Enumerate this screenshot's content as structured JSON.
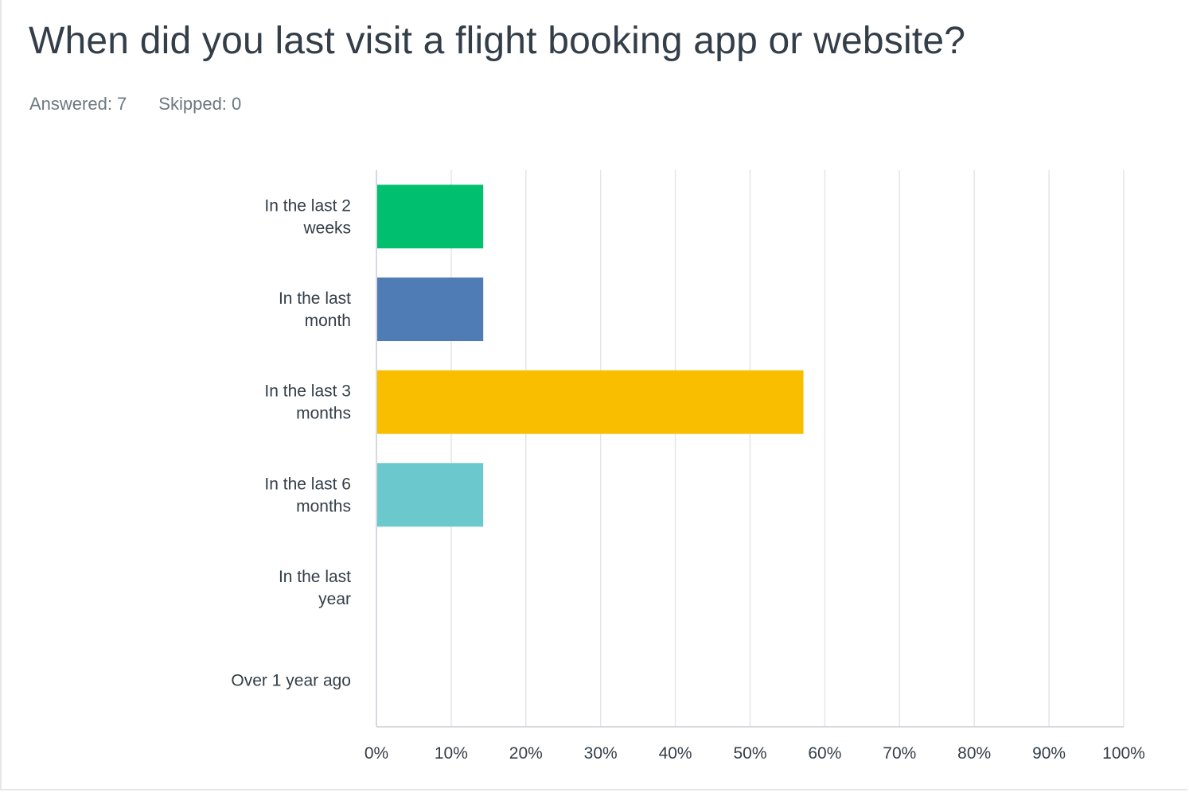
{
  "question": {
    "title": "When did you last visit a flight booking app or website?",
    "answered": "Answered: 7",
    "skipped": "Skipped: 0"
  },
  "chart_data": {
    "type": "bar",
    "orientation": "horizontal",
    "title": "When did you last visit a flight booking app or website?",
    "categories": [
      [
        "In the last 2",
        "weeks"
      ],
      [
        "In the last",
        "month"
      ],
      [
        "In the last 3",
        "months"
      ],
      [
        "In the last 6",
        "months"
      ],
      [
        "In the last",
        "year"
      ],
      [
        "Over 1 year ago"
      ]
    ],
    "values": [
      14.29,
      14.29,
      57.14,
      14.29,
      0,
      0
    ],
    "colors": [
      "#00bf6f",
      "#507cb6",
      "#f9be00",
      "#6bc8cd",
      "#cccccc",
      "#cccccc"
    ],
    "xlim": [
      0,
      100
    ],
    "ticks": [
      "0%",
      "10%",
      "20%",
      "30%",
      "40%",
      "50%",
      "60%",
      "70%",
      "80%",
      "90%",
      "100%"
    ],
    "grid": true,
    "xlabel": "",
    "ylabel": ""
  }
}
